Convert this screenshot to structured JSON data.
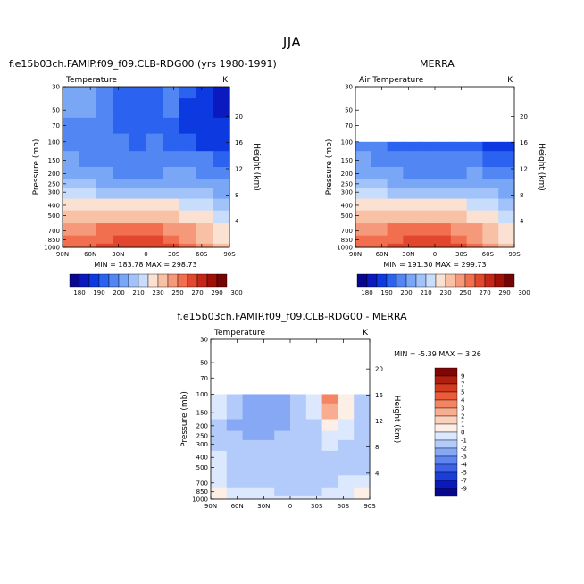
{
  "figure": {
    "season": "JJA"
  },
  "colors": {
    "t_levels": [
      "#08088e",
      "#0a1abe",
      "#0d3ae0",
      "#2b63f0",
      "#5287f3",
      "#7aa6f6",
      "#a2c3f9",
      "#c8dcfb",
      "#fbe1d2",
      "#f8c1a6",
      "#f5997a",
      "#f16e4e",
      "#e2462c",
      "#c62618",
      "#9e1008",
      "#720505"
    ],
    "d_levels": [
      "#08088e",
      "#0a1ab8",
      "#1b3ed6",
      "#3c62e8",
      "#5f86f0",
      "#86a8f5",
      "#b3cbfa",
      "#dbe8fd",
      "#fdeee6",
      "#fbd0bc",
      "#f9ad90",
      "#f58562",
      "#ec5b3a",
      "#d43a1e",
      "#b01e0e",
      "#800606"
    ]
  },
  "panels": [
    {
      "title": "f.e15b03ch.FAMIP.f09_f09.CLB-RDG00 (yrs 1980-1991)",
      "field_label": "Temperature",
      "units": "K",
      "min_label": "MIN = 183.78   MAX = 298.73"
    },
    {
      "title": "MERRA",
      "field_label": "Air Temperature",
      "units": "K",
      "min_label": "MIN = 191.30   MAX = 299.73"
    },
    {
      "title": "f.e15b03ch.FAMIP.f09_f09.CLB-RDG00 - MERRA",
      "field_label": "Temperature",
      "units": "K",
      "min_label": "MIN =   -5.39   MAX =    3.26"
    }
  ],
  "axes": {
    "ylabel": "Pressure (mb)",
    "ylabel_right": "Height (km)",
    "pressure_ticks": [
      "30",
      "50",
      "70",
      "100",
      "150",
      "200",
      "250",
      "300",
      "400",
      "500",
      "700",
      "850",
      "1000"
    ],
    "height_ticks": [
      "20",
      "16",
      "12",
      "8",
      "4"
    ],
    "lat_ticks": [
      "90N",
      "60N",
      "30N",
      "0",
      "30S",
      "60S",
      "90S"
    ]
  },
  "colorbar_temp": {
    "labels": [
      "180",
      "190",
      "200",
      "210",
      "230",
      "250",
      "270",
      "290",
      "300"
    ]
  },
  "colorbar_diff": {
    "labels": [
      "9",
      "7",
      "5",
      "4",
      "3",
      "2",
      "1",
      "0",
      "-1",
      "-2",
      "-3",
      "-4",
      "-5",
      "-7",
      "-9"
    ]
  },
  "chart_data": [
    {
      "type": "heatmap",
      "title": "f.e15b03ch.FAMIP.f09_f09.CLB-RDG00 (yrs 1980-1991)",
      "xlabel": "",
      "ylabel": "Pressure (mb)",
      "y2label": "Height (km)",
      "x": [
        "90N",
        "60N",
        "30N",
        "0",
        "30S",
        "60S",
        "90S"
      ],
      "y": [
        30,
        50,
        70,
        100,
        150,
        200,
        250,
        300,
        400,
        500,
        700,
        850,
        1000
      ],
      "y_log_scale": true,
      "units": "K",
      "min": 183.78,
      "max": 298.73,
      "contour_levels": [
        180,
        190,
        200,
        210,
        220,
        230,
        240,
        250,
        260,
        270,
        280,
        290,
        300
      ],
      "values_K": [
        [
          225,
          222,
          214,
          205,
          203,
          205,
          212,
          200,
          192,
          188
        ],
        [
          222,
          220,
          212,
          204,
          203,
          204,
          210,
          198,
          190,
          186
        ],
        [
          218,
          216,
          210,
          205,
          204,
          205,
          208,
          199,
          193,
          190
        ],
        [
          214,
          213,
          212,
          210,
          209,
          210,
          209,
          203,
          198,
          195
        ],
        [
          220,
          218,
          215,
          212,
          211,
          212,
          214,
          213,
          210,
          206
        ],
        [
          228,
          224,
          220,
          218,
          218,
          218,
          220,
          221,
          218,
          214
        ],
        [
          235,
          232,
          229,
          228,
          228,
          228,
          229,
          229,
          226,
          222
        ],
        [
          242,
          240,
          238,
          238,
          238,
          238,
          238,
          236,
          233,
          229
        ],
        [
          254,
          253,
          253,
          253,
          253,
          253,
          251,
          247,
          243,
          238
        ],
        [
          264,
          265,
          266,
          267,
          267,
          267,
          263,
          257,
          250,
          244
        ],
        [
          274,
          278,
          281,
          283,
          283,
          283,
          279,
          270,
          261,
          254
        ],
        [
          280,
          285,
          289,
          292,
          292,
          291,
          286,
          276,
          266,
          258
        ],
        [
          283,
          289,
          294,
          298,
          298,
          297,
          292,
          280,
          270,
          262
        ]
      ]
    },
    {
      "type": "heatmap",
      "title": "MERRA",
      "xlabel": "",
      "ylabel": "Pressure (mb)",
      "y2label": "Height (km)",
      "x": [
        "90N",
        "60N",
        "30N",
        "0",
        "30S",
        "60S",
        "90S"
      ],
      "y": [
        100,
        150,
        200,
        250,
        300,
        400,
        500,
        700,
        850,
        1000
      ],
      "y_log_scale": true,
      "units": "K",
      "min": 191.3,
      "max": 299.73,
      "contour_levels": [
        180,
        190,
        200,
        210,
        220,
        230,
        240,
        250,
        260,
        270,
        280,
        290,
        300
      ],
      "values_K": [
        [
          213,
          212,
          209,
          206,
          205,
          206,
          208,
          203,
          197,
          194
        ],
        [
          220,
          218,
          214,
          211,
          210,
          211,
          213,
          212,
          208,
          204
        ],
        [
          228,
          224,
          220,
          217,
          217,
          217,
          219,
          220,
          217,
          213
        ],
        [
          235,
          232,
          229,
          228,
          228,
          228,
          229,
          229,
          226,
          222
        ],
        [
          242,
          240,
          238,
          238,
          238,
          238,
          238,
          236,
          233,
          229
        ],
        [
          254,
          253,
          253,
          253,
          253,
          253,
          251,
          247,
          243,
          238
        ],
        [
          264,
          265,
          266,
          267,
          267,
          267,
          263,
          257,
          250,
          244
        ],
        [
          274,
          278,
          281,
          283,
          283,
          283,
          279,
          270,
          261,
          254
        ],
        [
          280,
          285,
          289,
          292,
          292,
          291,
          286,
          276,
          266,
          258
        ],
        [
          283,
          289,
          294,
          299,
          299,
          297,
          292,
          280,
          270,
          262
        ]
      ]
    },
    {
      "type": "heatmap",
      "title": "f.e15b03ch.FAMIP.f09_f09.CLB-RDG00 - MERRA",
      "xlabel": "",
      "ylabel": "Pressure (mb)",
      "y2label": "Height (km)",
      "x": [
        "90N",
        "60N",
        "30N",
        "0",
        "30S",
        "60S",
        "90S"
      ],
      "y": [
        100,
        150,
        200,
        250,
        300,
        400,
        500,
        700,
        850,
        1000
      ],
      "y_log_scale": true,
      "units": "K",
      "min": -5.39,
      "max": 3.26,
      "contour_levels": [
        -9,
        -7,
        -5,
        -4,
        -3,
        -2,
        -1,
        0,
        1,
        2,
        3,
        4,
        5,
        7,
        9
      ],
      "values_K": [
        [
          -0.5,
          -1.5,
          -2.5,
          -2.5,
          -3.0,
          -1.5,
          -0.5,
          3.0,
          0.5,
          -2.0
        ],
        [
          -0.5,
          -1.5,
          -2.5,
          -2.5,
          -2.5,
          -1.5,
          -0.8,
          2.0,
          0.5,
          -1.5
        ],
        [
          -1.2,
          -2.2,
          -2.2,
          -2.2,
          -2.2,
          -1.8,
          -1.2,
          0.5,
          -0.5,
          -1.5
        ],
        [
          -1.5,
          -2.0,
          -2.2,
          -2.2,
          -2.0,
          -1.8,
          -1.5,
          -0.5,
          -1.0,
          -1.5
        ],
        [
          -1.2,
          -1.8,
          -2.0,
          -2.0,
          -2.0,
          -1.8,
          -1.5,
          -1.0,
          -1.2,
          -1.5
        ],
        [
          -1.0,
          -1.5,
          -1.8,
          -1.8,
          -1.8,
          -1.8,
          -1.5,
          -1.2,
          -1.2,
          -1.5
        ],
        [
          -0.8,
          -1.2,
          -1.5,
          -1.5,
          -1.5,
          -1.5,
          -1.5,
          -1.2,
          -1.2,
          -1.2
        ],
        [
          -0.5,
          -1.2,
          -1.5,
          -1.5,
          -1.5,
          -1.5,
          -1.5,
          -1.2,
          -1.0,
          -0.5
        ],
        [
          0.5,
          -0.8,
          -0.8,
          -1.0,
          -1.2,
          -1.2,
          -1.2,
          -1.0,
          -0.8,
          0.8
        ],
        [
          0.5,
          -0.8,
          -0.8,
          -1.0,
          -1.0,
          -1.0,
          -1.0,
          -1.0,
          -0.8,
          0.5
        ]
      ]
    }
  ]
}
